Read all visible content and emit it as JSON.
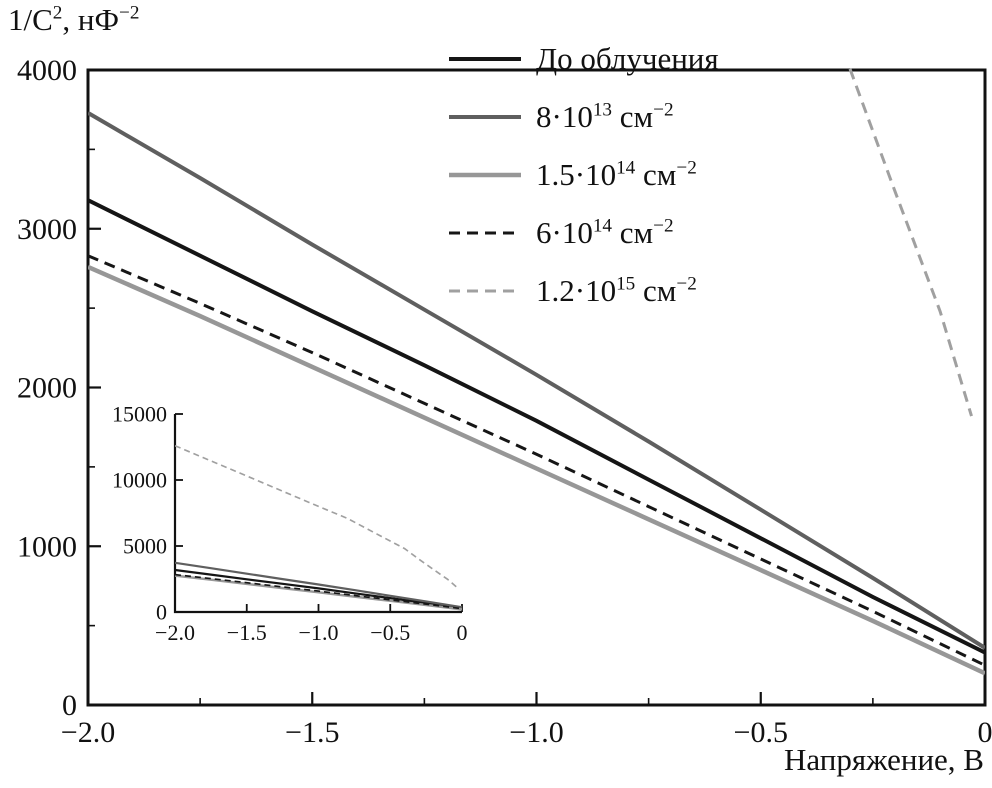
{
  "chart_data": {
    "type": "line",
    "x_axis_title": "Напряжение, В",
    "y_axis_title_parts": [
      {
        "t": "1/C"
      },
      {
        "sup": "2"
      },
      {
        "t": ", нФ"
      },
      {
        "sup": "−2"
      }
    ],
    "legend_position": "top-right-inside",
    "main_axes": {
      "xlim": [
        -2.0,
        0
      ],
      "ylim": [
        0,
        4000
      ],
      "xticks": [
        -2.0,
        -1.5,
        -1.0,
        -0.5,
        0
      ],
      "xtick_labels": [
        "−2.0",
        "−1.5",
        "−1.0",
        "−0.5",
        "0"
      ],
      "yticks": [
        0,
        1000,
        2000,
        3000,
        4000
      ],
      "ytick_labels": [
        "0",
        "1000",
        "2000",
        "3000",
        "4000"
      ],
      "x_minor_step": 0.25,
      "y_minor_step": 500,
      "frame": "box",
      "grid": false
    },
    "inset_axes": {
      "xlim": [
        -2.0,
        0
      ],
      "ylim": [
        0,
        15000
      ],
      "xticks": [
        -2.0,
        -1.5,
        -1.0,
        -0.5,
        0
      ],
      "xtick_labels": [
        "−2.0",
        "−1.5",
        "−1.0",
        "−0.5",
        "0"
      ],
      "yticks": [
        0,
        5000,
        10000,
        15000
      ],
      "ytick_labels": [
        "0",
        "5000",
        "10000",
        "15000"
      ],
      "frame": "L",
      "grid": false
    },
    "series": [
      {
        "id": "pre-irradiation",
        "label_parts": [
          {
            "t": "До облучения"
          }
        ],
        "color": "#151515",
        "dash": false,
        "width": 4,
        "points": [
          [
            -2.0,
            3180
          ],
          [
            -1.75,
            2830
          ],
          [
            -1.5,
            2480
          ],
          [
            -1.25,
            2140
          ],
          [
            -1.0,
            1790
          ],
          [
            -0.75,
            1420
          ],
          [
            -0.5,
            1050
          ],
          [
            -0.25,
            680
          ],
          [
            0,
            330
          ]
        ]
      },
      {
        "id": "dose-8e13",
        "label_parts": [
          {
            "t": "8·10"
          },
          {
            "sup": "13"
          },
          {
            "t": " см"
          },
          {
            "sup": "−2"
          }
        ],
        "color": "#5f5f5f",
        "dash": false,
        "width": 4,
        "points": [
          [
            -2.0,
            3730
          ],
          [
            -1.75,
            3320
          ],
          [
            -1.5,
            2900
          ],
          [
            -1.25,
            2490
          ],
          [
            -1.0,
            2080
          ],
          [
            -0.75,
            1660
          ],
          [
            -0.5,
            1230
          ],
          [
            -0.25,
            800
          ],
          [
            0,
            360
          ]
        ]
      },
      {
        "id": "dose-1.5e14",
        "label_parts": [
          {
            "t": "1.5·10"
          },
          {
            "sup": "14"
          },
          {
            "t": " см"
          },
          {
            "sup": "−2"
          }
        ],
        "color": "#979797",
        "dash": false,
        "width": 4.5,
        "points": [
          [
            -2.0,
            2760
          ],
          [
            -1.75,
            2450
          ],
          [
            -1.5,
            2130
          ],
          [
            -1.25,
            1810
          ],
          [
            -1.0,
            1490
          ],
          [
            -0.75,
            1170
          ],
          [
            -0.5,
            850
          ],
          [
            -0.25,
            530
          ],
          [
            0,
            200
          ]
        ]
      },
      {
        "id": "dose-6e14",
        "label_parts": [
          {
            "t": "6·10"
          },
          {
            "sup": "14"
          },
          {
            "t": " см"
          },
          {
            "sup": "−2"
          }
        ],
        "color": "#161616",
        "dash": true,
        "width": 3,
        "points": [
          [
            -2.0,
            2830
          ],
          [
            -1.75,
            2530
          ],
          [
            -1.5,
            2220
          ],
          [
            -1.25,
            1900
          ],
          [
            -1.0,
            1580
          ],
          [
            -0.75,
            1250
          ],
          [
            -0.5,
            920
          ],
          [
            -0.25,
            590
          ],
          [
            0,
            250
          ]
        ]
      },
      {
        "id": "dose-1.2e15",
        "label_parts": [
          {
            "t": "1.2·10"
          },
          {
            "sup": "15"
          },
          {
            "t": " см"
          },
          {
            "sup": "−2"
          }
        ],
        "color": "#a0a0a0",
        "dash": true,
        "width": 3,
        "points": [
          [
            -2.0,
            12600
          ],
          [
            -1.75,
            11450
          ],
          [
            -1.5,
            10300
          ],
          [
            -1.25,
            9150
          ],
          [
            -1.0,
            8000
          ],
          [
            -0.8,
            7100
          ],
          [
            -0.6,
            5950
          ],
          [
            -0.4,
            4800
          ],
          [
            -0.3,
            4000
          ],
          [
            -0.2,
            3230
          ],
          [
            -0.1,
            2480
          ],
          [
            -0.03,
            1820
          ]
        ]
      }
    ]
  }
}
